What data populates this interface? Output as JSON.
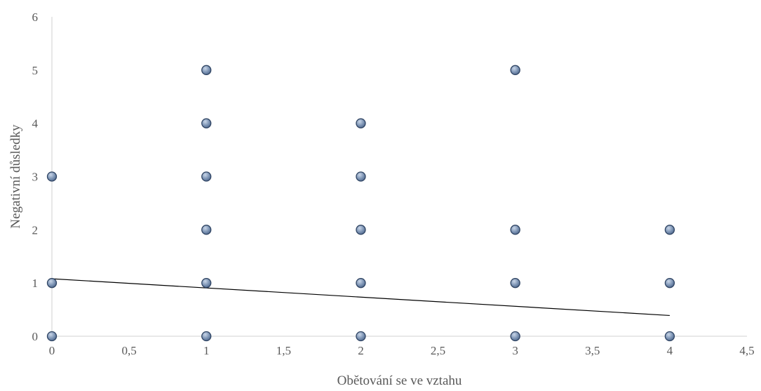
{
  "chart_data": {
    "type": "scatter",
    "xlabel": "Obětování se ve vztahu",
    "ylabel": "Negativní důsledky",
    "xlim": [
      0,
      4.5
    ],
    "ylim": [
      0,
      6
    ],
    "x_ticks": [
      "0",
      "0,5",
      "1",
      "1,5",
      "2",
      "2,5",
      "3",
      "3,5",
      "4",
      "4,5"
    ],
    "y_ticks": [
      "0",
      "1",
      "2",
      "3",
      "4",
      "5",
      "6"
    ],
    "grid": false,
    "points": [
      {
        "x": 0,
        "y": 0
      },
      {
        "x": 0,
        "y": 1
      },
      {
        "x": 0,
        "y": 3
      },
      {
        "x": 1,
        "y": 0
      },
      {
        "x": 1,
        "y": 1
      },
      {
        "x": 1,
        "y": 2
      },
      {
        "x": 1,
        "y": 3
      },
      {
        "x": 1,
        "y": 4
      },
      {
        "x": 1,
        "y": 5
      },
      {
        "x": 2,
        "y": 0
      },
      {
        "x": 2,
        "y": 1
      },
      {
        "x": 2,
        "y": 2
      },
      {
        "x": 2,
        "y": 3
      },
      {
        "x": 2,
        "y": 4
      },
      {
        "x": 3,
        "y": 0
      },
      {
        "x": 3,
        "y": 1
      },
      {
        "x": 3,
        "y": 2
      },
      {
        "x": 3,
        "y": 5
      },
      {
        "x": 4,
        "y": 0
      },
      {
        "x": 4,
        "y": 1
      },
      {
        "x": 4,
        "y": 2
      }
    ],
    "trendline": {
      "type": "linear",
      "x_start": 0,
      "y_start": 1.08,
      "x_end": 4,
      "y_end": 0.39
    },
    "colors": {
      "marker_fill": "#7f96b6",
      "marker_stroke": "#2f4463",
      "trendline": "#000000",
      "axis": "#d9d9d9",
      "text": "#595959"
    }
  }
}
